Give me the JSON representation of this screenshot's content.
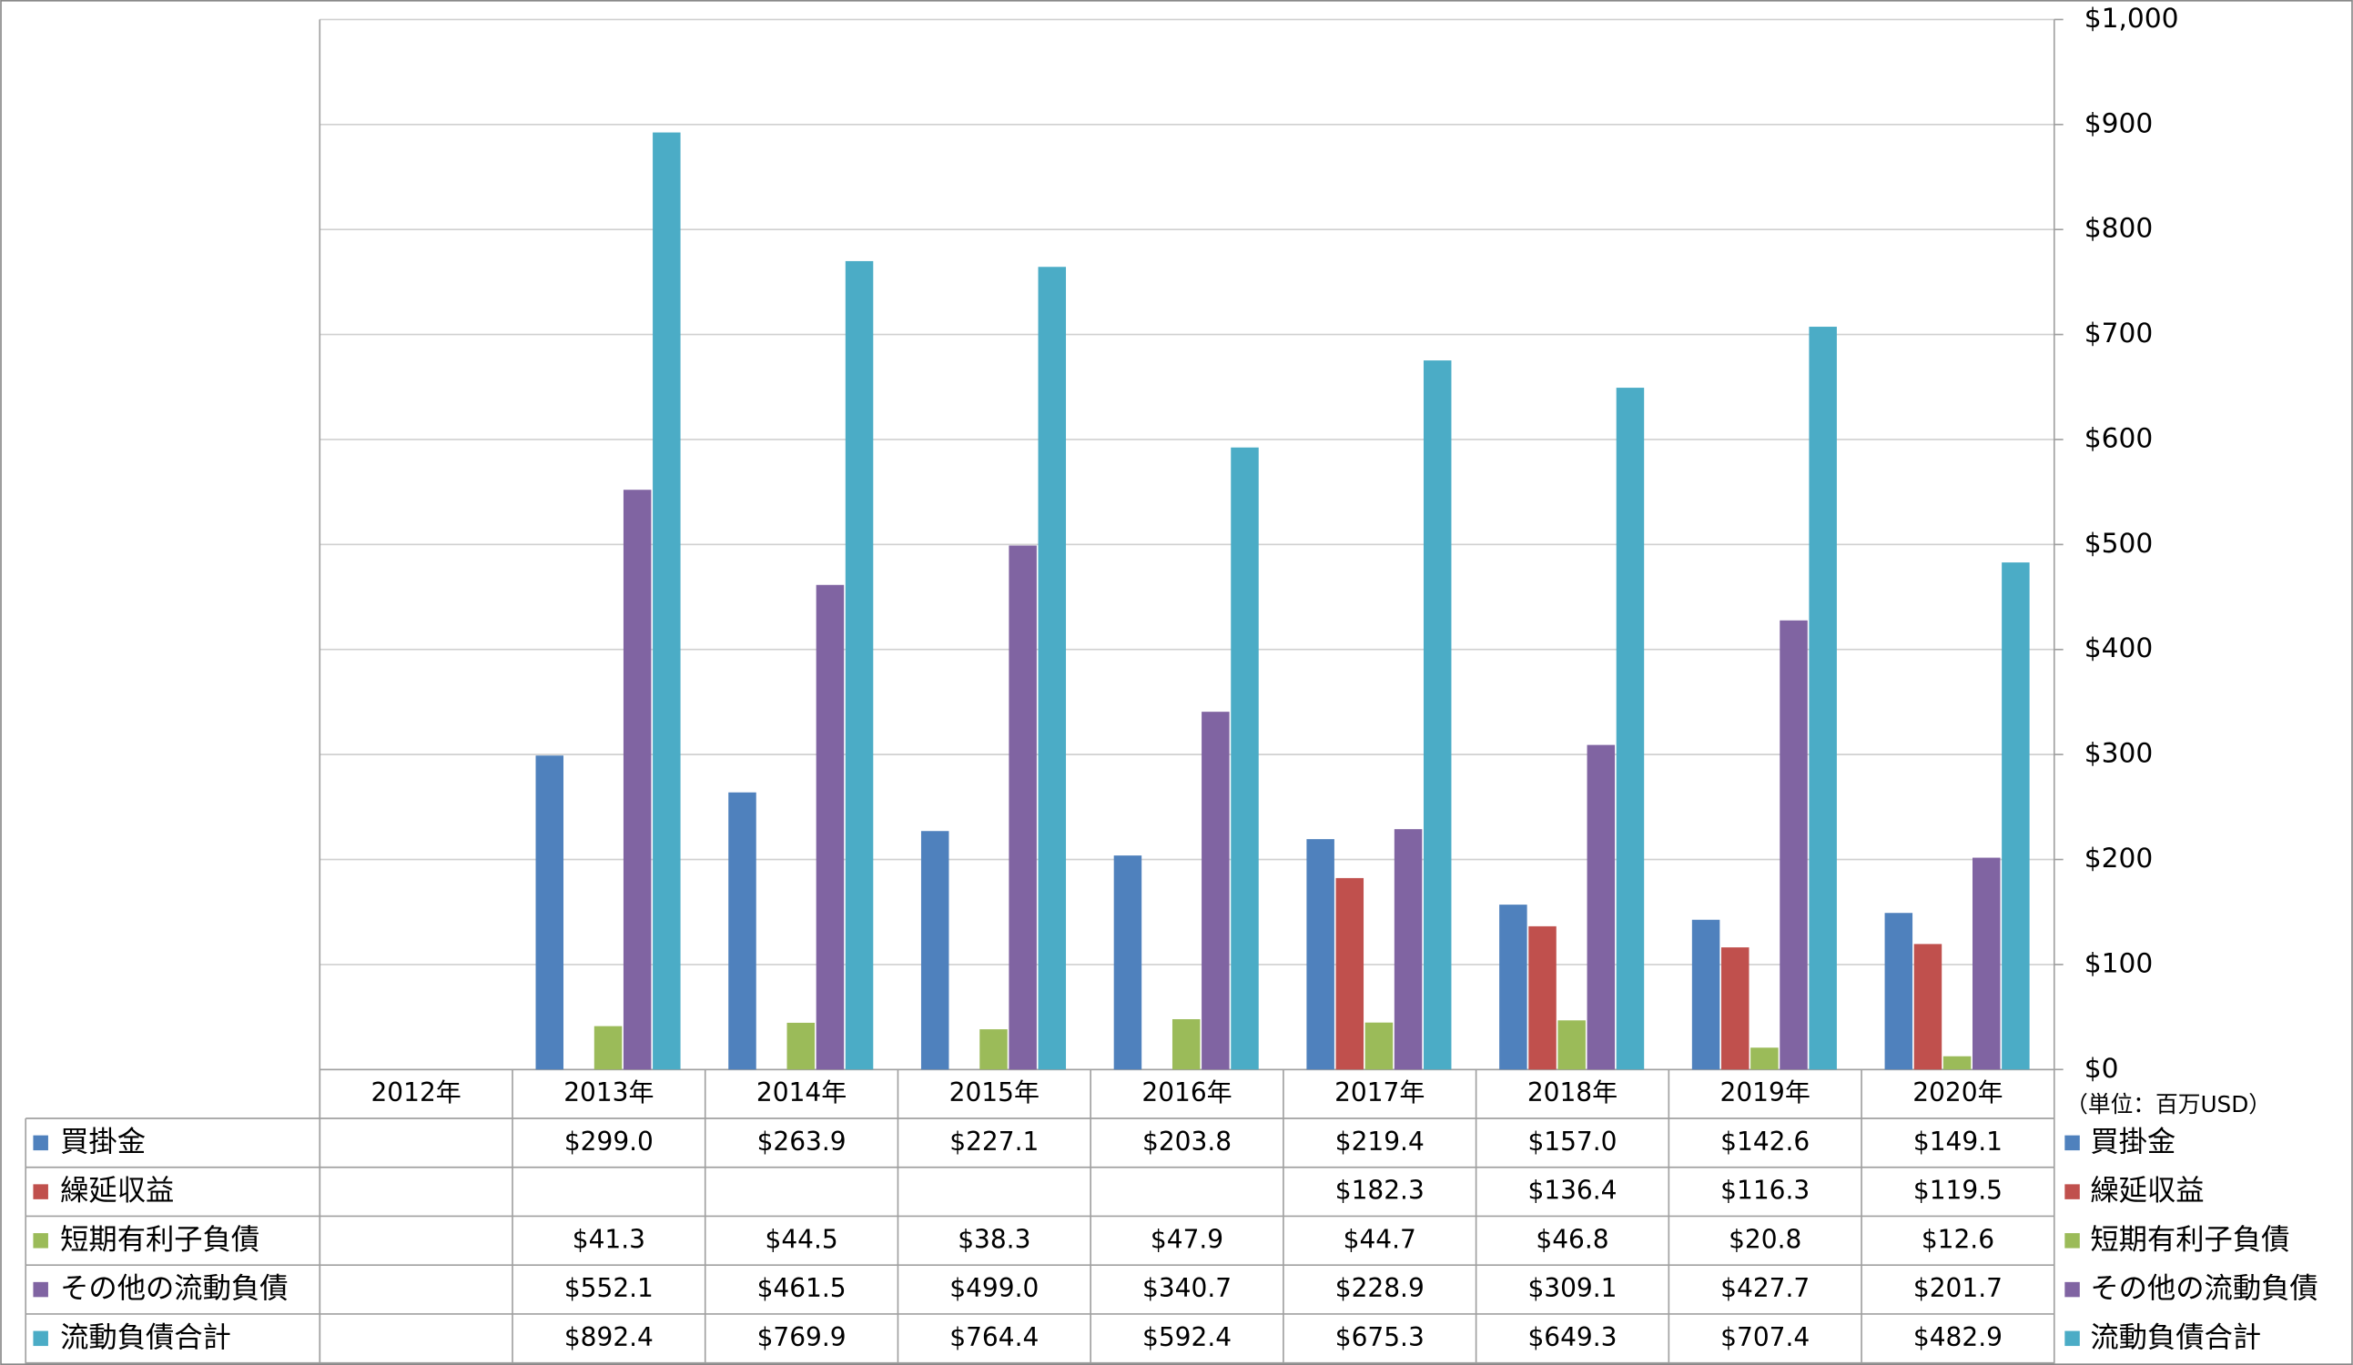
{
  "chart_data": {
    "type": "bar",
    "categories": [
      "2012年",
      "2013年",
      "2014年",
      "2015年",
      "2016年",
      "2017年",
      "2018年",
      "2019年",
      "2020年"
    ],
    "series": [
      {
        "name": "買掛金",
        "color": "#4f81bd",
        "values": [
          null,
          299.0,
          263.9,
          227.1,
          203.8,
          219.4,
          157.0,
          142.6,
          149.1
        ],
        "value_labels": [
          null,
          "$299.0",
          "$263.9",
          "$227.1",
          "$203.8",
          "$219.4",
          "$157.0",
          "$142.6",
          "$149.1"
        ]
      },
      {
        "name": "繰延収益",
        "color": "#c0504d",
        "values": [
          null,
          null,
          null,
          null,
          null,
          182.3,
          136.4,
          116.3,
          119.5
        ],
        "value_labels": [
          null,
          null,
          null,
          null,
          null,
          "$182.3",
          "$136.4",
          "$116.3",
          "$119.5"
        ]
      },
      {
        "name": "短期有利子負債",
        "color": "#9bbb59",
        "values": [
          null,
          41.3,
          44.5,
          38.3,
          47.9,
          44.7,
          46.8,
          20.8,
          12.6
        ],
        "value_labels": [
          null,
          "$41.3",
          "$44.5",
          "$38.3",
          "$47.9",
          "$44.7",
          "$46.8",
          "$20.8",
          "$12.6"
        ]
      },
      {
        "name": "その他の流動負債",
        "color": "#8064a2",
        "values": [
          null,
          552.1,
          461.5,
          499.0,
          340.7,
          228.9,
          309.1,
          427.7,
          201.7
        ],
        "value_labels": [
          null,
          "$552.1",
          "$461.5",
          "$499.0",
          "$340.7",
          "$228.9",
          "$309.1",
          "$427.7",
          "$201.7"
        ]
      },
      {
        "name": "流動負債合計",
        "color": "#4bacc6",
        "values": [
          null,
          892.4,
          769.9,
          764.4,
          592.4,
          675.3,
          649.3,
          707.4,
          482.9
        ],
        "value_labels": [
          null,
          "$892.4",
          "$769.9",
          "$764.4",
          "$592.4",
          "$675.3",
          "$649.3",
          "$707.4",
          "$482.9"
        ]
      }
    ],
    "ylim": [
      0,
      1000
    ],
    "yticks": [
      {
        "value": 0,
        "label": "$0"
      },
      {
        "value": 100,
        "label": "$100"
      },
      {
        "value": 200,
        "label": "$200"
      },
      {
        "value": 300,
        "label": "$300"
      },
      {
        "value": 400,
        "label": "$400"
      },
      {
        "value": 500,
        "label": "$500"
      },
      {
        "value": 600,
        "label": "$600"
      },
      {
        "value": 700,
        "label": "$700"
      },
      {
        "value": 800,
        "label": "$800"
      },
      {
        "value": 900,
        "label": "$900"
      },
      {
        "value": 1000,
        "label": "$1,000"
      }
    ],
    "unit_note": "（単位：百万USD）",
    "grid": true
  }
}
